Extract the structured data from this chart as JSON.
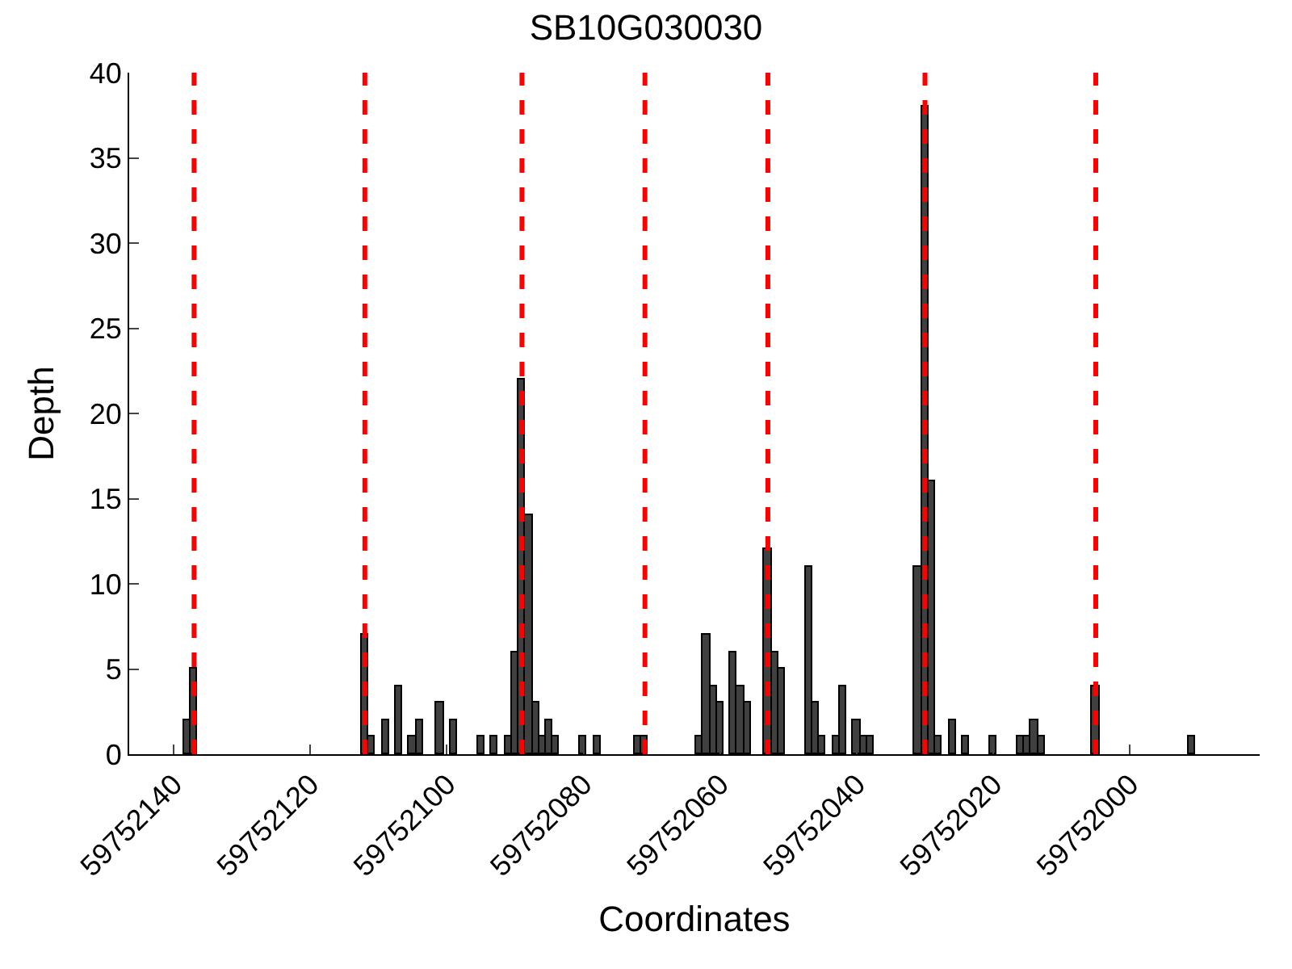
{
  "chart_data": {
    "type": "bar",
    "title": "SB10G030030",
    "xlabel": "Coordinates",
    "ylabel": "Depth",
    "x": [
      59752138,
      59752137,
      59752112,
      59752111,
      59752109,
      59752107,
      59752105,
      59752104,
      59752101,
      59752099,
      59752095,
      59752093,
      59752091,
      59752090,
      59752089,
      59752088,
      59752087,
      59752086,
      59752085,
      59752084,
      59752080,
      59752078,
      59752072,
      59752071,
      59752063,
      59752062,
      59752061,
      59752060,
      59752058,
      59752057,
      59752056,
      59752053,
      59752052,
      59752051,
      59752047,
      59752046,
      59752045,
      59752043,
      59752042,
      59752040,
      59752039,
      59752038,
      59752031,
      59752030,
      59752029,
      59752028,
      59752026,
      59752024,
      59752020,
      59752016,
      59752015,
      59752014,
      59752013,
      59752005,
      59751991
    ],
    "values": [
      2,
      5,
      7,
      1,
      2,
      4,
      1,
      2,
      3,
      2,
      1,
      1,
      1,
      6,
      22,
      14,
      3,
      1,
      2,
      1,
      1,
      1,
      1,
      1,
      1,
      7,
      4,
      3,
      6,
      4,
      3,
      12,
      6,
      5,
      11,
      3,
      1,
      1,
      4,
      2,
      1,
      1,
      11,
      38,
      16,
      1,
      2,
      1,
      1,
      1,
      1,
      2,
      1,
      4,
      1
    ],
    "color": "#404040",
    "xlim": [
      59752146.5,
      59751981
    ],
    "xticks": [
      59752140,
      59752120,
      59752100,
      59752080,
      59752060,
      59752040,
      59752020,
      59752000
    ],
    "ylim": [
      0,
      40
    ],
    "yticks": [
      0,
      5,
      10,
      15,
      20,
      25,
      30,
      35,
      40
    ],
    "ref_lines": [
      {
        "axis": "x",
        "value": 59752137,
        "color": "#ff0000",
        "line_style": "dashed"
      },
      {
        "axis": "x",
        "value": 59752112,
        "color": "#ff0000",
        "line_style": "dashed"
      },
      {
        "axis": "x",
        "value": 59752089,
        "color": "#ff0000",
        "line_style": "dashed"
      },
      {
        "axis": "x",
        "value": 59752071,
        "color": "#ff0000",
        "line_style": "dashed"
      },
      {
        "axis": "x",
        "value": 59752053,
        "color": "#ff0000",
        "line_style": "dashed"
      },
      {
        "axis": "x",
        "value": 59752030,
        "color": "#ff0000",
        "line_style": "dashed"
      },
      {
        "axis": "x",
        "value": 59752005,
        "color": "#ff0000",
        "line_style": "dashed"
      }
    ]
  }
}
